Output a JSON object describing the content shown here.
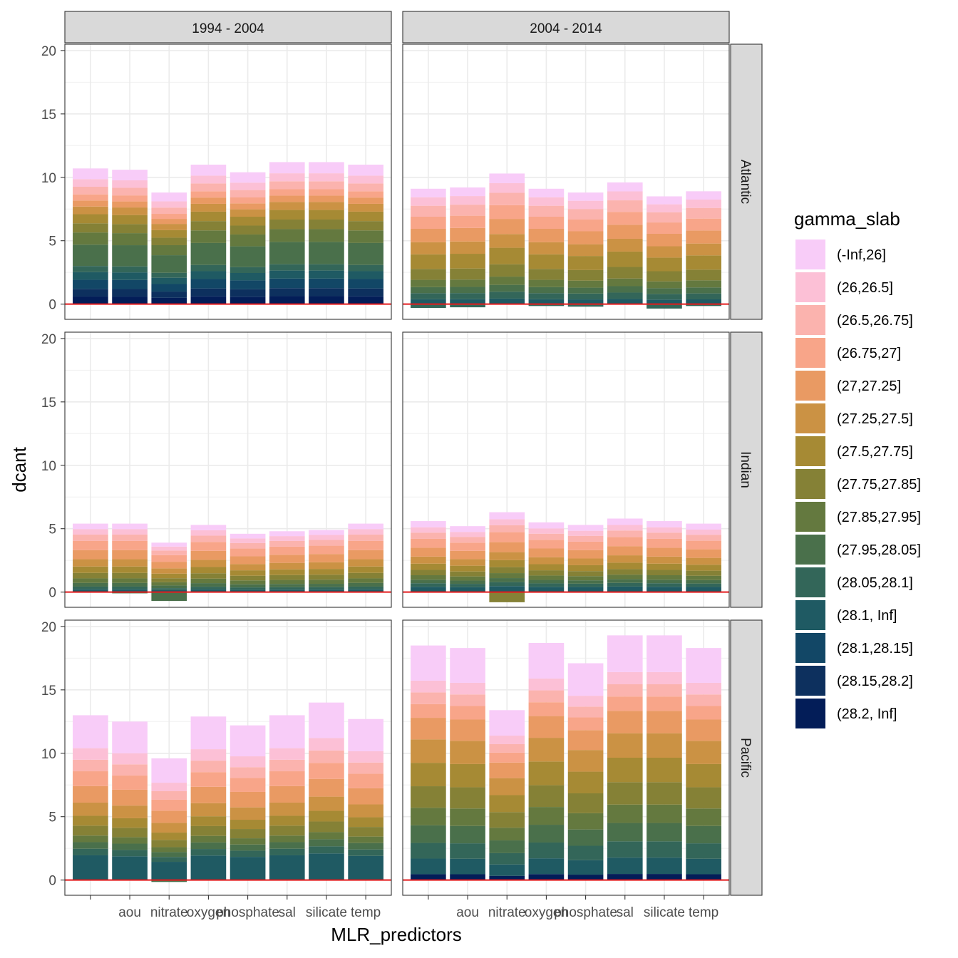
{
  "chart_data": {
    "type": "bar",
    "stacked": true,
    "xlabel": "MLR_predictors",
    "ylabel": "dcant",
    "ylim": [
      -1.2,
      20.5
    ],
    "yticks": [
      0,
      5,
      10,
      15,
      20
    ],
    "x_tick_labels": [
      "",
      "aou",
      "nitrate",
      "oxygen",
      "phosphate",
      "sal",
      "silicate",
      "temp"
    ],
    "facet_cols": [
      "1994 - 2004",
      "2004 - 2014"
    ],
    "facet_rows": [
      "Atlantic",
      "Indian",
      "Pacific"
    ],
    "reference_line": 0,
    "reference_line_color": "#e31a1c",
    "legend": {
      "title": "gamma_slab",
      "position": "right",
      "entries": [
        {
          "label": "(-Inf,26]",
          "color": "#F8CCF8"
        },
        {
          "label": "(26,26.5]",
          "color": "#FCC0D6"
        },
        {
          "label": "(26.5,26.75]",
          "color": "#FBB3AE"
        },
        {
          "label": "(26.75,27]",
          "color": "#F8A589"
        },
        {
          "label": "(27,27.25]",
          "color": "#E99A63"
        },
        {
          "label": "(27.25,27.5]",
          "color": "#CB9244"
        },
        {
          "label": "(27.5,27.75]",
          "color": "#A68A34"
        },
        {
          "label": "(27.75,27.85]",
          "color": "#858136"
        },
        {
          "label": "(27.85,27.95]",
          "color": "#64793F"
        },
        {
          "label": "(27.95,28.05]",
          "color": "#4A704B"
        },
        {
          "label": "(28.05,28.1]",
          "color": "#336659"
        },
        {
          "label": "(28.1, Inf]",
          "color": "#1F5A63"
        },
        {
          "label": "(28.1,28.15]",
          "color": "#124766"
        },
        {
          "label": "(28.15,28.2]",
          "color": "#0D305E"
        },
        {
          "label": "(28.2, Inf]",
          "color": "#031D58"
        }
      ]
    },
    "panels": [
      {
        "row": "Atlantic",
        "col": "1994 - 2004",
        "totals": [
          10.7,
          10.6,
          8.8,
          11.0,
          10.4,
          11.2,
          11.2,
          11.0
        ],
        "negatives": [
          0,
          0,
          0,
          0,
          0,
          0,
          0,
          0
        ]
      },
      {
        "row": "Atlantic",
        "col": "2004 - 2014",
        "totals": [
          9.1,
          9.2,
          10.3,
          9.1,
          8.8,
          9.6,
          8.5,
          8.9
        ],
        "negatives": [
          -0.3,
          -0.25,
          0,
          -0.15,
          -0.2,
          0,
          -0.35,
          -0.15
        ]
      },
      {
        "row": "Indian",
        "col": "1994 - 2004",
        "totals": [
          5.4,
          5.4,
          3.9,
          5.3,
          4.6,
          4.8,
          4.9,
          5.4
        ],
        "negatives": [
          0,
          -0.1,
          -0.7,
          0,
          0,
          0,
          0,
          0
        ]
      },
      {
        "row": "Indian",
        "col": "2004 - 2014",
        "totals": [
          5.6,
          5.2,
          6.3,
          5.5,
          5.3,
          5.8,
          5.6,
          5.4
        ],
        "negatives": [
          0,
          0,
          -0.8,
          0,
          0,
          0,
          0,
          0
        ]
      },
      {
        "row": "Pacific",
        "col": "1994 - 2004",
        "totals": [
          13.0,
          12.5,
          9.6,
          12.9,
          12.2,
          13.0,
          14.0,
          12.7
        ],
        "negatives": [
          0,
          0,
          -0.15,
          0,
          0,
          0,
          0,
          0
        ]
      },
      {
        "row": "Pacific",
        "col": "2004 - 2014",
        "totals": [
          18.5,
          18.3,
          13.4,
          18.7,
          17.1,
          19.3,
          19.3,
          18.3
        ],
        "negatives": [
          0,
          0,
          0,
          0,
          0,
          0,
          0,
          0
        ]
      }
    ]
  }
}
